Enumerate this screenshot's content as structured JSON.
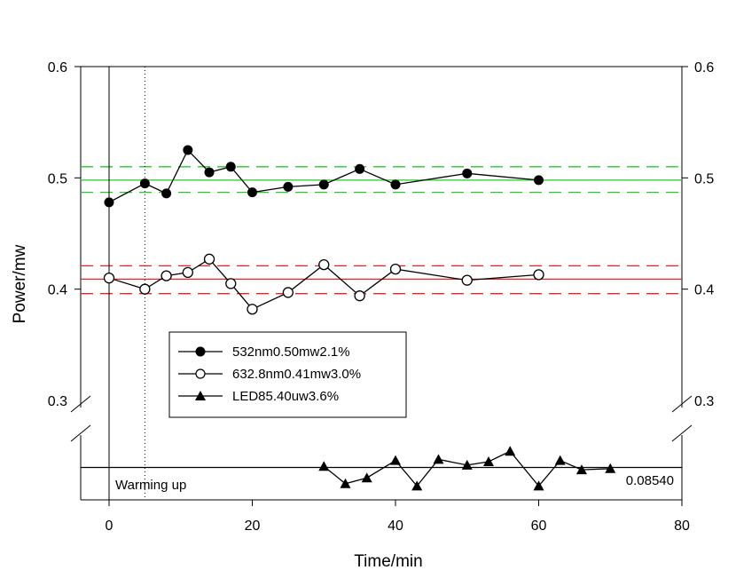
{
  "chart_data": {
    "type": "line",
    "xlabel": "Time/min",
    "ylabel": "Power/mw",
    "xlim": [
      -4,
      80
    ],
    "ylim_upper": [
      0.3,
      0.6
    ],
    "yticks_upper": [
      "0.3",
      "0.4",
      "0.5",
      "0.6"
    ],
    "yticks_upper_values": [
      0.3,
      0.4,
      0.5,
      0.6
    ],
    "xticks": [
      "0",
      "20",
      "40",
      "60",
      "80"
    ],
    "xticks_values": [
      0,
      20,
      40,
      60,
      80
    ],
    "axis_break": "between 0.3 and LED baseline (broken y-axis)",
    "series": [
      {
        "name": "532nm0.50mw2.1%",
        "marker": "filled-circle",
        "x": [
          0,
          5,
          8,
          11,
          14,
          17,
          20,
          25,
          30,
          35,
          40,
          50,
          60
        ],
        "values": [
          0.478,
          0.495,
          0.486,
          0.525,
          0.505,
          0.51,
          0.487,
          0.492,
          0.494,
          0.508,
          0.494,
          0.504,
          0.498
        ]
      },
      {
        "name": "632.8nm0.41mw3.0%",
        "marker": "open-circle",
        "x": [
          0,
          5,
          8,
          11,
          14,
          17,
          20,
          25,
          30,
          35,
          40,
          50,
          60
        ],
        "values": [
          0.41,
          0.4,
          0.412,
          0.415,
          0.427,
          0.405,
          0.382,
          0.397,
          0.422,
          0.394,
          0.418,
          0.408,
          0.413
        ]
      },
      {
        "name": "LED85.40uw3.6%",
        "marker": "filled-triangle",
        "x": [
          30,
          33,
          36,
          40,
          43,
          46,
          50,
          53,
          56,
          60,
          63,
          66,
          70
        ],
        "values": [
          0.0855,
          0.084,
          0.0845,
          0.086,
          0.0838,
          0.0861,
          0.0856,
          0.0859,
          0.0868,
          0.0838,
          0.086,
          0.0852,
          0.0853
        ]
      }
    ],
    "reference_lines": [
      {
        "series": "532nm0.50mw2.1%",
        "color": "#22cc22",
        "mean": 0.498,
        "upper": 0.51,
        "lower": 0.487
      },
      {
        "series": "632.8nm0.41mw3.0%",
        "color": "#ee2222",
        "mean": 0.409,
        "upper": 0.421,
        "lower": 0.396
      },
      {
        "series": "LED85.40uw3.6%",
        "color": "#000000",
        "mean": 0.0854
      }
    ],
    "vertical_lines": [
      {
        "x": 0,
        "style": "solid"
      },
      {
        "x": 5,
        "style": "dotted"
      }
    ],
    "legend_position": "center-left",
    "annotations": {
      "warming_up": "Warming up",
      "led_mean": "0.08540"
    },
    "lower_panel": {
      "ylim": [
        0.0826,
        0.0882
      ]
    }
  }
}
